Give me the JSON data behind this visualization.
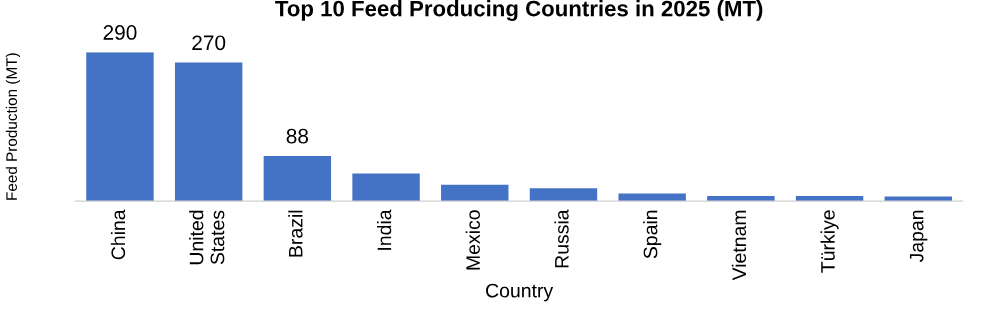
{
  "chart_data": {
    "type": "bar",
    "title": "Top 10 Feed Producing Countries in 2025 (MT)",
    "xlabel": "Country",
    "ylabel": "Feed Production (MT)",
    "categories": [
      "China",
      "United\nStates",
      "Brazil",
      "India",
      "Mexico",
      "Russia",
      "Spain",
      "Vietnam",
      "Türkiye",
      "Japan"
    ],
    "values": [
      290,
      270,
      88,
      54,
      32,
      25,
      15,
      10,
      10,
      9
    ],
    "value_labels": [
      "290",
      "270",
      "88",
      null,
      null,
      null,
      null,
      null,
      null,
      null
    ],
    "color": "#4472c4",
    "grid": false,
    "legend": false
  }
}
